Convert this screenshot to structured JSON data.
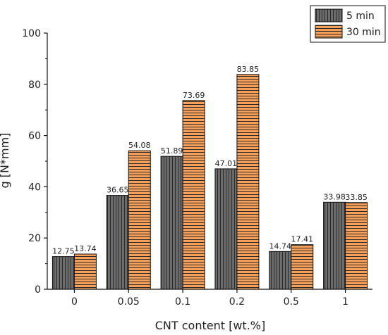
{
  "chart_data": {
    "type": "bar",
    "categories": [
      "0",
      "0.05",
      "0.1",
      "0.2",
      "0.5",
      "1"
    ],
    "series": [
      {
        "name": "5 min",
        "values": [
          12.75,
          36.65,
          51.89,
          47.01,
          14.74,
          33.98
        ],
        "color": "#6b6b6b",
        "pattern": "vertical-stripes"
      },
      {
        "name": "30 min",
        "values": [
          13.74,
          54.08,
          73.69,
          83.85,
          17.41,
          33.85
        ],
        "color": "#f7a05a",
        "pattern": "horizontal-stripes"
      }
    ],
    "data_labels": [
      [
        "12.75",
        "36.65",
        "51.89",
        "47.01",
        "14.74",
        "33.98"
      ],
      [
        "13.74",
        "54.08",
        "73.69",
        "83.85",
        "17.41",
        "33.85"
      ]
    ],
    "title": "",
    "xlabel": "CNT content [wt.%]",
    "ylabel": "g [N*mm]",
    "ylim": [
      0,
      100
    ],
    "yticks": [
      0,
      20,
      40,
      60,
      80,
      100
    ],
    "grid": false,
    "legend": "top-right"
  }
}
